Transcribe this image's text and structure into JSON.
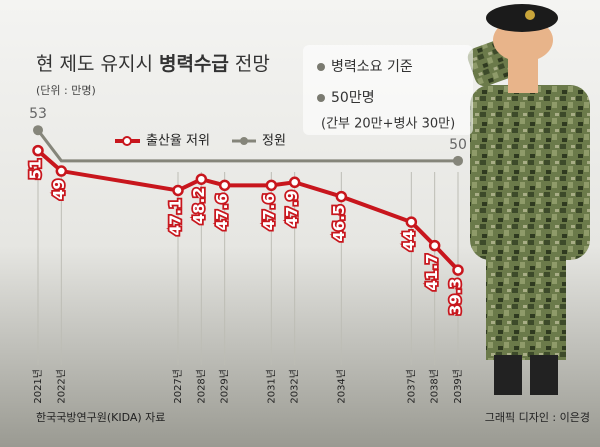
{
  "chart_data": {
    "type": "line",
    "title": "현 제도 유지시",
    "title_bold": "병력수급",
    "title_end": "전망",
    "subtitle": "(단위 : 만명)",
    "notes": [
      "병력소요 기준",
      "50만명",
      "(간부 20만+병사 30만)"
    ],
    "source": "한국국방연구원(KIDA) 자료",
    "credit": "그래픽 디자인 : 이은경",
    "xlim": [
      2021,
      2039
    ],
    "ylim": [
      30,
      54
    ],
    "xticks": [
      {
        "value": 2021,
        "label": "2021년"
      },
      {
        "value": 2022,
        "label": "2022년"
      },
      {
        "value": 2027,
        "label": "2027년"
      },
      {
        "value": 2028,
        "label": "2028년"
      },
      {
        "value": 2029,
        "label": "2029년"
      },
      {
        "value": 2031,
        "label": "2031년"
      },
      {
        "value": 2032,
        "label": "2032년"
      },
      {
        "value": 2034,
        "label": "2034년"
      },
      {
        "value": 2037,
        "label": "2037년"
      },
      {
        "value": 2038,
        "label": "2038년"
      },
      {
        "value": 2039,
        "label": "2039년"
      }
    ],
    "series": [
      {
        "name": "출산율 저위",
        "color": "#c8161d",
        "x": [
          2021,
          2022,
          2027,
          2028,
          2029,
          2031,
          2032,
          2034,
          2037,
          2038,
          2039
        ],
        "values": [
          51,
          49,
          47.1,
          48.2,
          47.6,
          47.6,
          47.9,
          46.5,
          44,
          41.7,
          39.3
        ]
      },
      {
        "name": "정원",
        "color": "#85857a",
        "x": [
          2021,
          2022,
          2039
        ],
        "values": [
          53,
          50,
          50
        ]
      }
    ]
  }
}
